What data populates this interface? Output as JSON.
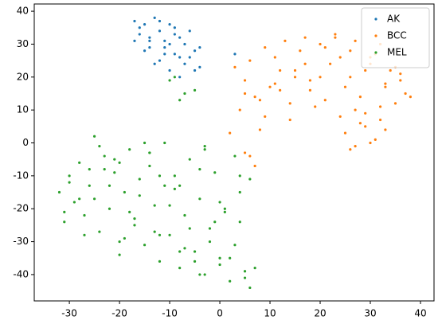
{
  "chart_data": {
    "type": "scatter",
    "xlim": [
      -37,
      42.7
    ],
    "ylim": [
      -48,
      42.2
    ],
    "xticks": [
      -30,
      -20,
      -10,
      0,
      10,
      20,
      30,
      40
    ],
    "yticks": [
      -40,
      -30,
      -20,
      -10,
      0,
      10,
      20,
      30,
      40
    ],
    "legend": "upper right",
    "series": [
      {
        "name": "AK",
        "color": "#1f77b4",
        "x": [
          -17,
          -16,
          -15,
          -14,
          -13,
          -12,
          -11,
          -10,
          -9,
          -8,
          -7,
          -6,
          -5,
          -4,
          -17,
          -15,
          -13,
          -11,
          -9,
          -7,
          -5,
          -16,
          -14,
          -12,
          -10,
          -8,
          -6,
          -12,
          -10,
          -8,
          -14,
          -11,
          -9,
          3,
          -4
        ],
        "values": [
          37,
          33,
          36,
          31,
          38,
          34,
          29,
          36,
          27,
          32,
          30,
          26,
          28,
          29,
          31,
          28,
          24,
          27,
          33,
          24,
          22,
          35,
          32,
          37,
          30,
          26,
          34,
          25,
          22,
          20,
          29,
          31,
          35,
          27,
          23
        ]
      },
      {
        "name": "BCC",
        "color": "#ff7f0e",
        "x": [
          3,
          5,
          7,
          9,
          11,
          13,
          15,
          17,
          19,
          21,
          23,
          25,
          27,
          29,
          31,
          33,
          35,
          37,
          4,
          6,
          8,
          10,
          12,
          14,
          16,
          18,
          20,
          22,
          24,
          26,
          28,
          30,
          32,
          34,
          36,
          38,
          5,
          8,
          11,
          14,
          17,
          20,
          23,
          26,
          29,
          32,
          35,
          9,
          12,
          15,
          18,
          21,
          24,
          27,
          30,
          33,
          36,
          25,
          27,
          29,
          31,
          33,
          26,
          28,
          30,
          32,
          6,
          7,
          5,
          2
        ],
        "values": [
          23,
          19,
          14,
          8,
          26,
          31,
          20,
          32,
          11,
          29,
          33,
          17,
          31,
          22,
          27,
          18,
          12,
          15,
          10,
          25,
          4,
          17,
          22,
          12,
          28,
          16,
          30,
          24,
          8,
          20,
          14,
          26,
          11,
          22,
          19,
          14,
          15,
          13,
          18,
          7,
          24,
          20,
          32,
          28,
          9,
          30,
          23,
          29,
          16,
          22,
          19,
          13,
          26,
          10,
          24,
          17,
          21,
          3,
          -1,
          5,
          1,
          4,
          -2,
          6,
          0,
          7,
          -4,
          -7,
          -3,
          3
        ]
      },
      {
        "name": "MEL",
        "color": "#2ca02c",
        "x": [
          -32,
          -31,
          -30,
          -29,
          -28,
          -27,
          -26,
          -25,
          -24,
          -23,
          -22,
          -21,
          -20,
          -19,
          -18,
          -17,
          -16,
          -15,
          -14,
          -13,
          -12,
          -11,
          -10,
          -9,
          -8,
          -7,
          -6,
          -5,
          -4,
          -3,
          -2,
          -1,
          0,
          1,
          2,
          3,
          4,
          5,
          6,
          7,
          -30,
          -28,
          -26,
          -24,
          -22,
          -20,
          -18,
          -16,
          -14,
          -12,
          -10,
          -8,
          -6,
          -4,
          -2,
          0,
          2,
          4,
          6,
          -31,
          -27,
          -23,
          -19,
          -15,
          -11,
          -7,
          -3,
          1,
          5,
          -25,
          -21,
          -17,
          -13,
          -9,
          -5,
          -1,
          3,
          -20,
          -12,
          -8,
          -4,
          0,
          4,
          -9,
          -7,
          -5,
          -8,
          -10,
          -3,
          -14
        ],
        "values": [
          -15,
          -24,
          -10,
          -18,
          -6,
          -22,
          -13,
          2,
          -27,
          -4,
          -20,
          -9,
          -34,
          -15,
          -2,
          -25,
          -11,
          -31,
          -7,
          -19,
          -36,
          0,
          -28,
          -14,
          -38,
          -22,
          -5,
          -33,
          -17,
          -40,
          -26,
          -9,
          -37,
          -21,
          -42,
          -31,
          -15,
          -39,
          -44,
          -38,
          -12,
          -17,
          -8,
          -1,
          -13,
          -6,
          -21,
          -16,
          -3,
          -10,
          -19,
          -13,
          -26,
          -8,
          -30,
          -18,
          -35,
          -24,
          -11,
          -21,
          -28,
          -8,
          -29,
          0,
          -13,
          -32,
          -1,
          -20,
          -41,
          -17,
          -5,
          -23,
          -27,
          -10,
          -36,
          -24,
          -4,
          -30,
          -28,
          -33,
          -40,
          -35,
          -10,
          20,
          15,
          16,
          13,
          19,
          -2,
          -3
        ]
      }
    ]
  }
}
